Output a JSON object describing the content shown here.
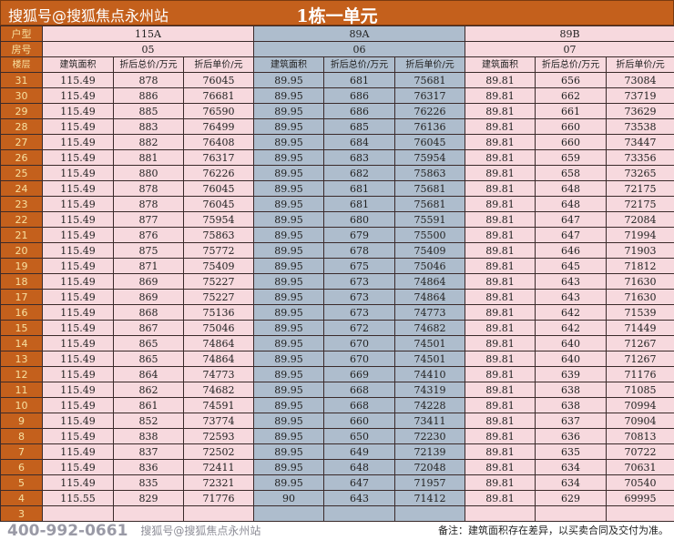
{
  "header": {
    "source": "搜狐号@搜狐焦点永州站",
    "title": "1栋一单元"
  },
  "labels": {
    "type": "户型",
    "room": "房号",
    "floor": "楼层"
  },
  "units": [
    {
      "type": "115A",
      "room": "05"
    },
    {
      "type": "89A",
      "room": "06"
    },
    {
      "type": "89B",
      "room": "07"
    }
  ],
  "columns": [
    "建筑面积",
    "折后总价/万元",
    "折后单价/元"
  ],
  "rows": [
    [
      "31",
      "115.49",
      "878",
      "76045",
      "89.95",
      "681",
      "75681",
      "89.81",
      "656",
      "73084"
    ],
    [
      "30",
      "115.49",
      "886",
      "76681",
      "89.95",
      "686",
      "76317",
      "89.81",
      "662",
      "73719"
    ],
    [
      "29",
      "115.49",
      "885",
      "76590",
      "89.95",
      "686",
      "76226",
      "89.81",
      "661",
      "73629"
    ],
    [
      "28",
      "115.49",
      "883",
      "76499",
      "89.95",
      "685",
      "76136",
      "89.81",
      "660",
      "73538"
    ],
    [
      "27",
      "115.49",
      "882",
      "76408",
      "89.95",
      "684",
      "76045",
      "89.81",
      "660",
      "73447"
    ],
    [
      "26",
      "115.49",
      "881",
      "76317",
      "89.95",
      "683",
      "75954",
      "89.81",
      "659",
      "73356"
    ],
    [
      "25",
      "115.49",
      "880",
      "76226",
      "89.95",
      "682",
      "75863",
      "89.81",
      "658",
      "73265"
    ],
    [
      "24",
      "115.49",
      "878",
      "76045",
      "89.95",
      "681",
      "75681",
      "89.81",
      "648",
      "72175"
    ],
    [
      "23",
      "115.49",
      "878",
      "76045",
      "89.95",
      "681",
      "75681",
      "89.81",
      "648",
      "72175"
    ],
    [
      "22",
      "115.49",
      "877",
      "75954",
      "89.95",
      "680",
      "75591",
      "89.81",
      "647",
      "72084"
    ],
    [
      "21",
      "115.49",
      "876",
      "75863",
      "89.95",
      "679",
      "75500",
      "89.81",
      "647",
      "71994"
    ],
    [
      "20",
      "115.49",
      "875",
      "75772",
      "89.95",
      "678",
      "75409",
      "89.81",
      "646",
      "71903"
    ],
    [
      "19",
      "115.49",
      "871",
      "75409",
      "89.95",
      "675",
      "75046",
      "89.81",
      "645",
      "71812"
    ],
    [
      "18",
      "115.49",
      "869",
      "75227",
      "89.95",
      "673",
      "74864",
      "89.81",
      "643",
      "71630"
    ],
    [
      "17",
      "115.49",
      "869",
      "75227",
      "89.95",
      "673",
      "74864",
      "89.81",
      "643",
      "71630"
    ],
    [
      "16",
      "115.49",
      "868",
      "75136",
      "89.95",
      "673",
      "74773",
      "89.81",
      "642",
      "71539"
    ],
    [
      "15",
      "115.49",
      "867",
      "75046",
      "89.95",
      "672",
      "74682",
      "89.81",
      "642",
      "71449"
    ],
    [
      "14",
      "115.49",
      "865",
      "74864",
      "89.95",
      "670",
      "74501",
      "89.81",
      "640",
      "71267"
    ],
    [
      "13",
      "115.49",
      "865",
      "74864",
      "89.95",
      "670",
      "74501",
      "89.81",
      "640",
      "71267"
    ],
    [
      "12",
      "115.49",
      "864",
      "74773",
      "89.95",
      "669",
      "74410",
      "89.81",
      "639",
      "71176"
    ],
    [
      "11",
      "115.49",
      "862",
      "74682",
      "89.95",
      "668",
      "74319",
      "89.81",
      "638",
      "71085"
    ],
    [
      "10",
      "115.49",
      "861",
      "74591",
      "89.95",
      "668",
      "74228",
      "89.81",
      "638",
      "70994"
    ],
    [
      "9",
      "115.49",
      "852",
      "73774",
      "89.95",
      "660",
      "73411",
      "89.81",
      "637",
      "70904"
    ],
    [
      "8",
      "115.49",
      "838",
      "72593",
      "89.95",
      "650",
      "72230",
      "89.81",
      "636",
      "70813"
    ],
    [
      "7",
      "115.49",
      "837",
      "72502",
      "89.95",
      "649",
      "72139",
      "89.81",
      "635",
      "70722"
    ],
    [
      "6",
      "115.49",
      "836",
      "72411",
      "89.95",
      "648",
      "72048",
      "89.81",
      "634",
      "70631"
    ],
    [
      "5",
      "115.49",
      "835",
      "72321",
      "89.95",
      "647",
      "71957",
      "89.81",
      "634",
      "70540"
    ],
    [
      "4",
      "115.55",
      "829",
      "71776",
      "90",
      "643",
      "71412",
      "89.81",
      "629",
      "69995"
    ],
    [
      "3",
      "",
      "",
      "",
      "",
      "",
      "",
      "",
      "",
      ""
    ]
  ],
  "note": "备注：建筑面积存在差异，以买卖合同及交付为准。",
  "watermark": "400-992-0661",
  "watermark_bottom": "搜狐号@搜狐焦点永州站",
  "colors": {
    "header": "#c4601c",
    "pink": "#f7d9de",
    "blue": "#aebdcd"
  }
}
